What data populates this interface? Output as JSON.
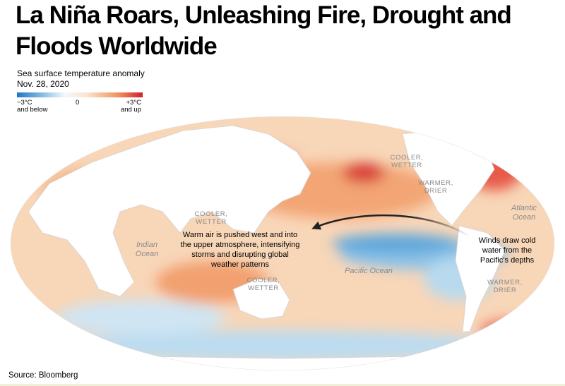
{
  "header": {
    "title": "La Niña Roars, Unleashing Fire, Drought and Floods Worldwide",
    "subtitle": "Sea surface temperature anomaly",
    "date": "Nov. 28, 2020"
  },
  "legend": {
    "min_label": "−3°C",
    "min_note": "and below",
    "mid_label": "0",
    "max_label": "+3°C",
    "max_note": "and up"
  },
  "map": {
    "labels": [
      {
        "lines": [
          "COOLER,",
          "WETTER"
        ]
      },
      {
        "lines": [
          "WARMER,",
          "DRIER"
        ]
      },
      {
        "lines": [
          "COOLER,",
          "WETTER"
        ]
      },
      {
        "lines": [
          "COOLER,",
          "WETTER"
        ]
      },
      {
        "lines": [
          "WARMER,",
          "DRIER"
        ]
      }
    ],
    "oceans": [
      {
        "lines": [
          "Atlantic",
          "Ocean"
        ]
      },
      {
        "lines": [
          "Indian",
          "Ocean"
        ]
      },
      {
        "lines": [
          "Pacific Ocean"
        ]
      }
    ],
    "annotations": [
      {
        "lines": [
          "Warm air is pushed west and into",
          "the upper atmosphere, intensifying",
          "storms and disrupting global",
          "weather patterns"
        ]
      },
      {
        "lines": [
          "Winds draw cold",
          "water from the",
          "Pacific’s depths"
        ]
      }
    ]
  },
  "footer": {
    "source": "Source: Bloomberg"
  }
}
